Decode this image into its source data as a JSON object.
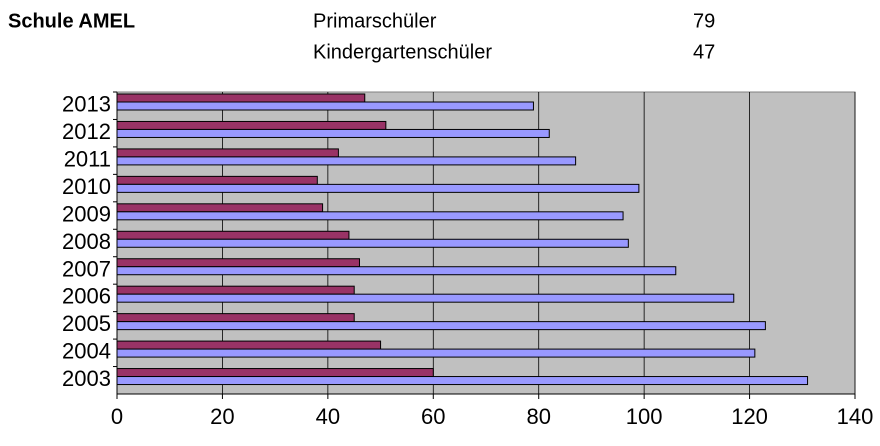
{
  "chart_data": {
    "type": "bar",
    "orientation": "horizontal",
    "title": "Schule AMEL",
    "categories": [
      "2003",
      "2004",
      "2005",
      "2006",
      "2007",
      "2008",
      "2009",
      "2010",
      "2011",
      "2012",
      "2013"
    ],
    "series": [
      {
        "name": "Primarschüler",
        "color": "#9999ff",
        "values": [
          131,
          121,
          123,
          117,
          106,
          97,
          96,
          99,
          87,
          82,
          79
        ]
      },
      {
        "name": "Kindergartenschüler",
        "color": "#993366",
        "values": [
          60,
          50,
          45,
          45,
          46,
          44,
          39,
          38,
          42,
          51,
          47
        ]
      }
    ],
    "xlim": [
      0,
      140
    ],
    "xticks": [
      0,
      20,
      40,
      60,
      80,
      100,
      120,
      140
    ],
    "grid": true,
    "background": "#c0c0c0"
  }
}
